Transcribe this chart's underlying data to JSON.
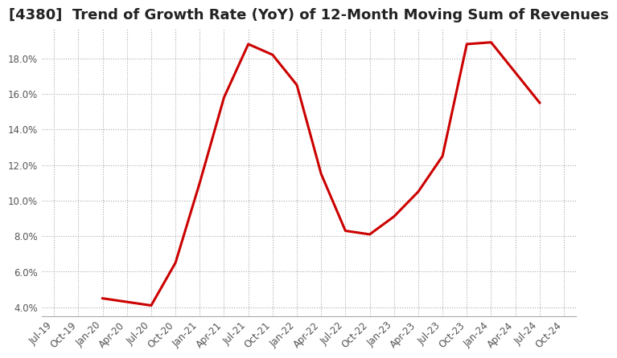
{
  "title": "[4380]  Trend of Growth Rate (YoY) of 12-Month Moving Sum of Revenues",
  "line_color": "#cc0000",
  "line_width": 2.2,
  "background_color": "#ffffff",
  "grid_color": "#aaaaaa",
  "ylim": [
    0.035,
    0.197
  ],
  "yticks": [
    0.04,
    0.06,
    0.08,
    0.1,
    0.12,
    0.14,
    0.16,
    0.18
  ],
  "dates": [
    "Jul-19",
    "Oct-19",
    "Jan-20",
    "Apr-20",
    "Jul-20",
    "Oct-20",
    "Jan-21",
    "Apr-21",
    "Jul-21",
    "Oct-21",
    "Jan-22",
    "Apr-22",
    "Jul-22",
    "Oct-22",
    "Jan-23",
    "Apr-23",
    "Jul-23",
    "Oct-23",
    "Jan-24",
    "Apr-24",
    "Jul-24",
    "Oct-24"
  ],
  "values": [
    null,
    null,
    0.045,
    0.043,
    0.041,
    0.065,
    0.11,
    0.158,
    0.188,
    0.182,
    0.165,
    0.115,
    0.083,
    0.081,
    0.091,
    0.105,
    0.125,
    0.188,
    0.189,
    0.172,
    0.155,
    null
  ],
  "title_fontsize": 13,
  "tick_fontsize": 8.5
}
